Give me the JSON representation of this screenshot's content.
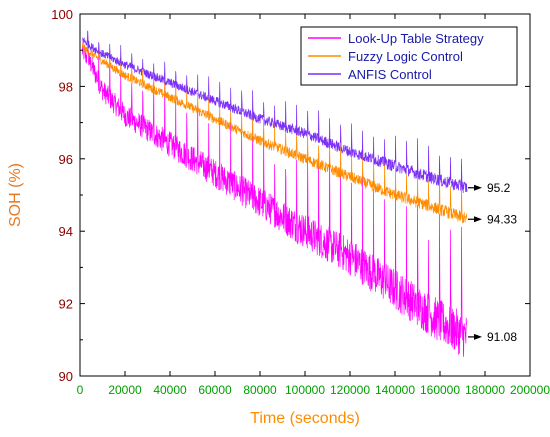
{
  "chart_data": {
    "type": "line",
    "title": "",
    "xlabel": "Time (seconds)",
    "ylabel": "SOH (%)",
    "xlim": [
      0,
      200000
    ],
    "ylim": [
      90,
      100
    ],
    "x_ticks": [
      "0",
      "20000",
      "40000",
      "60000",
      "80000",
      "100000",
      "120000",
      "140000",
      "160000",
      "180000",
      "200000"
    ],
    "y_ticks": [
      "90",
      "92",
      "94",
      "96",
      "98",
      "100"
    ],
    "legend_position": "top-right",
    "grid": false,
    "series": [
      {
        "name": "Look-Up Table Strategy",
        "color": "#ff00ff",
        "x": [
          1000,
          5000,
          10000,
          20000,
          40000,
          60000,
          80000,
          100000,
          120000,
          140000,
          160000,
          172000
        ],
        "y": [
          99.0,
          98.6,
          97.9,
          97.2,
          96.4,
          95.6,
          94.8,
          94.0,
          93.3,
          92.4,
          91.5,
          91.08
        ]
      },
      {
        "name": "Fuzzy Logic Control",
        "color": "#ff8c00",
        "x": [
          1000,
          5000,
          10000,
          20000,
          40000,
          60000,
          80000,
          100000,
          120000,
          140000,
          160000,
          172000
        ],
        "y": [
          99.1,
          98.9,
          98.7,
          98.3,
          97.7,
          97.1,
          96.5,
          96.0,
          95.5,
          95.0,
          94.6,
          94.33
        ]
      },
      {
        "name": "ANFIS Control",
        "color": "#7b2ff7",
        "x": [
          1000,
          5000,
          10000,
          20000,
          40000,
          60000,
          80000,
          100000,
          120000,
          140000,
          160000,
          172000
        ],
        "y": [
          99.3,
          99.1,
          98.9,
          98.6,
          98.1,
          97.6,
          97.1,
          96.7,
          96.2,
          95.8,
          95.4,
          95.2
        ]
      }
    ],
    "annotations": [
      {
        "text": "95.2",
        "x": 172000,
        "y": 95.2
      },
      {
        "text": "94.33",
        "x": 172000,
        "y": 94.33
      },
      {
        "text": "91.08",
        "x": 172000,
        "y": 91.08
      }
    ]
  }
}
